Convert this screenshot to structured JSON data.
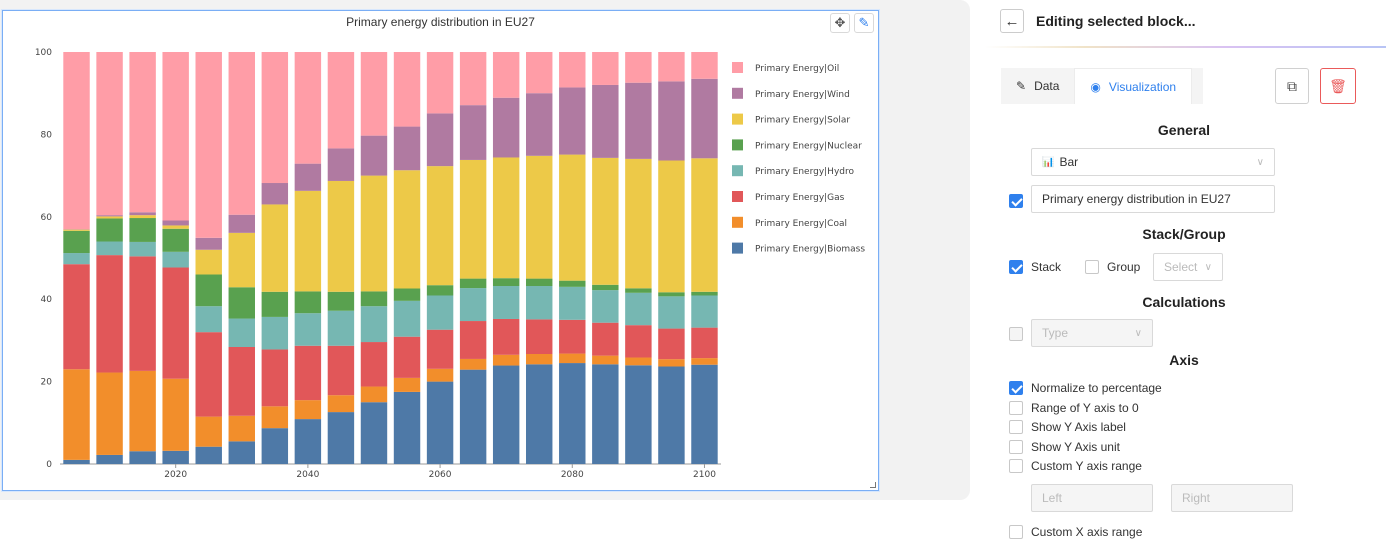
{
  "chart_block": {
    "title": "Primary energy distribution in EU27",
    "move_icon": "✥",
    "edit_icon": "✎"
  },
  "chart_data": {
    "type": "bar",
    "stacked": true,
    "title": "Primary energy distribution in EU27",
    "xlabel": "",
    "ylabel": "",
    "ylim": [
      0,
      100
    ],
    "yticks": [
      0,
      20,
      40,
      60,
      80,
      100
    ],
    "xticks": [
      2020,
      2040,
      2060,
      2080,
      2100
    ],
    "legend_position": "right",
    "categories": [
      2005,
      2010,
      2015,
      2020,
      2025,
      2030,
      2035,
      2040,
      2045,
      2050,
      2055,
      2060,
      2065,
      2070,
      2075,
      2080,
      2085,
      2090,
      2095,
      2100
    ],
    "series": [
      {
        "name": "Primary Energy|Biomass",
        "color": "#4e79a7",
        "values": [
          1,
          2.2,
          3.1,
          3.2,
          4.2,
          5.5,
          8.7,
          10.9,
          12.6,
          15,
          17.5,
          20,
          22.9,
          23.9,
          24.2,
          24.5,
          24.2,
          24.1,
          23.9,
          24.1
        ]
      },
      {
        "name": "Primary Energy|Coal",
        "color": "#f28e2b",
        "values": [
          22,
          20,
          19.5,
          17.5,
          7.3,
          6.2,
          5.3,
          4.6,
          4.1,
          3.8,
          3.4,
          3.1,
          2.6,
          2.6,
          2.5,
          2.3,
          2.1,
          1.9,
          1.8,
          1.6
        ]
      },
      {
        "name": "Primary Energy|Gas",
        "color": "#e15759",
        "values": [
          25.5,
          28.5,
          27.8,
          27,
          20.5,
          16.7,
          13.8,
          13.2,
          12,
          10.8,
          10,
          9.5,
          9.2,
          8.7,
          8.4,
          8.2,
          8,
          7.9,
          7.5,
          7.4
        ]
      },
      {
        "name": "Primary Energy|Hydro",
        "color": "#76b7b2",
        "values": [
          2.7,
          3.3,
          3.5,
          3.8,
          6.3,
          6.9,
          7.9,
          7.9,
          8.5,
          8.7,
          8.7,
          8.3,
          8,
          8,
          8.1,
          8,
          7.9,
          7.9,
          7.9,
          7.8
        ]
      },
      {
        "name": "Primary Energy|Nuclear",
        "color": "#59a14f",
        "values": [
          5.4,
          5.6,
          5.8,
          5.6,
          7.7,
          7.6,
          6.1,
          5.3,
          4.6,
          3.6,
          3,
          2.5,
          2.3,
          1.9,
          1.8,
          1.5,
          1.3,
          1.1,
          1.0,
          0.9
        ]
      },
      {
        "name": "Primary Energy|Solar",
        "color": "#edc948",
        "values": [
          0.3,
          0.5,
          0.7,
          0.8,
          6,
          13.2,
          21.2,
          24.4,
          26.9,
          28.1,
          28.7,
          28.9,
          28.8,
          29.3,
          29.8,
          30.6,
          30.8,
          31.6,
          32.3,
          32.4
        ]
      },
      {
        "name": "Primary Energy|Wind",
        "color": "#b07aa1",
        "values": [
          0.1,
          0.3,
          0.7,
          1.2,
          2.9,
          4.4,
          5.2,
          6.6,
          7.9,
          9.7,
          10.6,
          12.8,
          13.3,
          14.5,
          15.2,
          16.3,
          17.7,
          18.6,
          19.4,
          19.3
        ]
      },
      {
        "name": "Primary Energy|Oil",
        "color": "#ff9da7",
        "values": [
          43,
          39.6,
          38.9,
          40.9,
          45.1,
          39.5,
          31.8,
          27.1,
          23.4,
          20.3,
          18.1,
          14.9,
          12.9,
          11.1,
          10,
          8.6,
          8,
          7.5,
          7.2,
          6.5
        ]
      }
    ]
  },
  "panel": {
    "back_icon": "←",
    "title": "Editing selected block...",
    "tabs": [
      {
        "label": "Data",
        "icon": "✎"
      },
      {
        "label": "Visualization",
        "icon": "◉"
      }
    ],
    "copy_icon": "⧉",
    "delete_icon": "🗑",
    "general": {
      "title": "General",
      "chart_type_icon": "📊",
      "chart_type": "Bar",
      "title_enabled": true,
      "title_value": "Primary energy distribution in EU27"
    },
    "stack_group": {
      "title": "Stack/Group",
      "stack_label": "Stack",
      "stack_checked": true,
      "group_label": "Group",
      "group_checked": false,
      "select_placeholder": "Select"
    },
    "calculations": {
      "title": "Calculations",
      "type_placeholder": "Type",
      "checked": false
    },
    "axis": {
      "title": "Axis",
      "options": [
        {
          "label": "Normalize to percentage",
          "checked": true
        },
        {
          "label": "Range of Y axis to 0",
          "checked": false
        },
        {
          "label": "Show Y Axis label",
          "checked": false
        },
        {
          "label": "Show Y Axis unit",
          "checked": false
        },
        {
          "label": "Custom Y axis range",
          "checked": false
        }
      ],
      "left_placeholder": "Left",
      "right_placeholder": "Right",
      "custom_x_label": "Custom X axis range",
      "custom_x_checked": false
    }
  }
}
